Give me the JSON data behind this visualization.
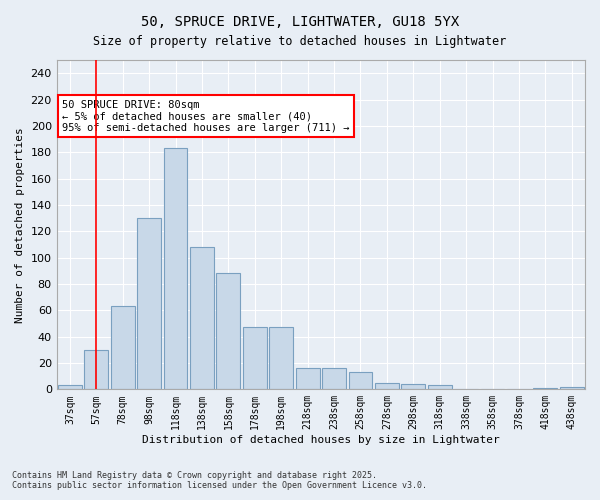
{
  "title1": "50, SPRUCE DRIVE, LIGHTWATER, GU18 5YX",
  "title2": "Size of property relative to detached houses in Lightwater",
  "xlabel": "Distribution of detached houses by size in Lightwater",
  "ylabel": "Number of detached properties",
  "bar_color": "#c8d8e8",
  "bar_edge_color": "#7aa0c0",
  "categories": [
    "37sqm",
    "57sqm",
    "78sqm",
    "98sqm",
    "118sqm",
    "138sqm",
    "158sqm",
    "178sqm",
    "198sqm",
    "218sqm",
    "238sqm",
    "258sqm",
    "278sqm",
    "298sqm",
    "318sqm",
    "338sqm",
    "358sqm",
    "378sqm",
    "418sqm",
    "438sqm"
  ],
  "values": [
    3,
    30,
    63,
    130,
    183,
    108,
    88,
    47,
    47,
    16,
    16,
    13,
    5,
    4,
    3,
    0,
    0,
    0,
    1,
    2
  ],
  "ylim": [
    0,
    250
  ],
  "yticks": [
    0,
    20,
    40,
    60,
    80,
    100,
    120,
    140,
    160,
    180,
    200,
    220,
    240
  ],
  "annotation_title": "50 SPRUCE DRIVE: 80sqm",
  "annotation_line1": "← 5% of detached houses are smaller (40)",
  "annotation_line2": "95% of semi-detached houses are larger (711) →",
  "vline_x": 1,
  "background_color": "#e8eef5",
  "footnote1": "Contains HM Land Registry data © Crown copyright and database right 2025.",
  "footnote2": "Contains public sector information licensed under the Open Government Licence v3.0."
}
